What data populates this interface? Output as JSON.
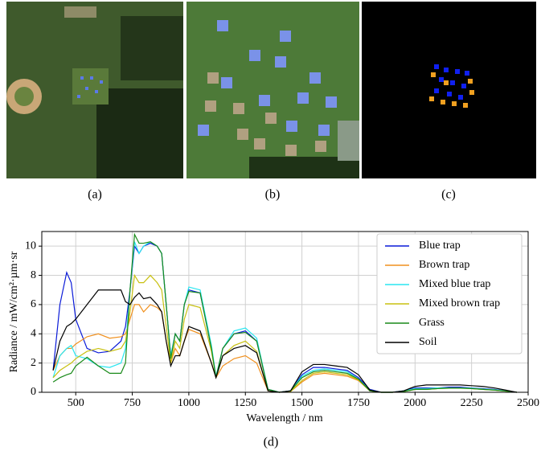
{
  "captions": [
    "(a)",
    "(b)",
    "(c)",
    "(d)"
  ],
  "chart_data": {
    "type": "line",
    "x_label": "Wavelength / nm",
    "y_label": "Radiance / mW/cm²·µm·sr",
    "x": [
      400,
      430,
      460,
      480,
      500,
      550,
      600,
      650,
      700,
      720,
      740,
      760,
      780,
      800,
      830,
      860,
      880,
      900,
      920,
      940,
      960,
      980,
      1000,
      1050,
      1100,
      1120,
      1150,
      1200,
      1250,
      1300,
      1350,
      1400,
      1450,
      1500,
      1550,
      1600,
      1650,
      1700,
      1750,
      1800,
      1850,
      1900,
      1950,
      2000,
      2050,
      2100,
      2150,
      2200,
      2250,
      2300,
      2350,
      2400,
      2450
    ],
    "series": [
      {
        "name": "Blue trap",
        "color": "#0a1ad8",
        "values": [
          1.5,
          6,
          8.2,
          7.5,
          5,
          3,
          2.7,
          2.8,
          3.5,
          4.5,
          7,
          10,
          9.5,
          10,
          10.2,
          10,
          9.5,
          6,
          2.5,
          4,
          3.5,
          6,
          7,
          6.8,
          3,
          1,
          3,
          4,
          4.2,
          3.5,
          0.2,
          0,
          0.1,
          1.2,
          1.7,
          1.7,
          1.6,
          1.5,
          1,
          0.2,
          0,
          0,
          0.1,
          0.3,
          0.3,
          0.3,
          0.35,
          0.35,
          0.3,
          0.25,
          0.2,
          0.1,
          0
        ]
      },
      {
        "name": "Brown trap",
        "color": "#f0901e",
        "values": [
          1.5,
          2.5,
          3,
          3,
          3.3,
          3.8,
          4,
          3.7,
          3.8,
          4,
          5,
          6,
          6,
          5.5,
          6,
          5.8,
          5.5,
          3.5,
          2,
          3,
          2.5,
          3.5,
          4.3,
          4,
          2,
          1,
          1.8,
          2.3,
          2.5,
          2,
          0.1,
          0,
          0.05,
          0.7,
          1.2,
          1.3,
          1.2,
          1.1,
          0.8,
          0.1,
          0,
          0,
          0.05,
          0.2,
          0.2,
          0.25,
          0.3,
          0.3,
          0.25,
          0.2,
          0.15,
          0.08,
          0
        ]
      },
      {
        "name": "Mixed blue trap",
        "color": "#28e6f0",
        "values": [
          1,
          2.5,
          3,
          3.2,
          2.5,
          2.3,
          1.8,
          1.7,
          2,
          3,
          7,
          10.3,
          9.5,
          10,
          10.3,
          10,
          9.5,
          6,
          2.5,
          4,
          3.5,
          6,
          7.2,
          7,
          3.2,
          1.1,
          3,
          4.2,
          4.4,
          3.7,
          0.2,
          0,
          0.1,
          1.1,
          1.5,
          1.6,
          1.5,
          1.4,
          0.9,
          0.15,
          0,
          0,
          0.1,
          0.25,
          0.25,
          0.3,
          0.3,
          0.3,
          0.28,
          0.22,
          0.18,
          0.1,
          0
        ]
      },
      {
        "name": "Mixed brown trap",
        "color": "#c8c010",
        "values": [
          1,
          1.5,
          1.8,
          2,
          2.3,
          2.8,
          3,
          2.8,
          3,
          3.5,
          5.5,
          8,
          7.5,
          7.5,
          8,
          7.5,
          7,
          4.5,
          2,
          3.5,
          3,
          5,
          6,
          5.8,
          2.8,
          1,
          2.5,
          3.2,
          3.5,
          2.8,
          0.1,
          0,
          0.05,
          0.8,
          1.3,
          1.4,
          1.3,
          1.2,
          0.85,
          0.1,
          0,
          0,
          0.05,
          0.2,
          0.2,
          0.25,
          0.28,
          0.28,
          0.25,
          0.2,
          0.15,
          0.08,
          0
        ]
      },
      {
        "name": "Grass",
        "color": "#1a8a1a",
        "values": [
          0.7,
          1,
          1.2,
          1.3,
          1.8,
          2.4,
          1.8,
          1.3,
          1.3,
          2,
          7,
          10.8,
          10.2,
          10.2,
          10.3,
          10,
          9.5,
          6,
          2.3,
          4,
          3.5,
          6,
          6.9,
          6.8,
          3,
          1,
          3,
          4,
          4.1,
          3.5,
          0.2,
          0,
          0.1,
          1,
          1.4,
          1.5,
          1.4,
          1.3,
          0.9,
          0.1,
          0,
          0,
          0.05,
          0.2,
          0.2,
          0.25,
          0.28,
          0.28,
          0.25,
          0.2,
          0.15,
          0.08,
          0
        ]
      },
      {
        "name": "Soil",
        "color": "#000000",
        "values": [
          1.5,
          3.5,
          4.5,
          4.7,
          5,
          6,
          7,
          7,
          7,
          6.2,
          6,
          6.5,
          6.8,
          6.4,
          6.5,
          6,
          5.5,
          3.5,
          1.8,
          2.5,
          2.5,
          3.5,
          4.5,
          4.2,
          2,
          1,
          2.5,
          3,
          3.2,
          2.7,
          0.1,
          0,
          0.1,
          1.4,
          1.9,
          1.9,
          1.8,
          1.7,
          1.2,
          0.15,
          0,
          0,
          0.1,
          0.4,
          0.5,
          0.5,
          0.5,
          0.5,
          0.45,
          0.4,
          0.3,
          0.15,
          0
        ]
      }
    ],
    "xlim": [
      350,
      2500
    ],
    "xticks": [
      500,
      750,
      1000,
      1250,
      1500,
      1750,
      2000,
      2250,
      2500
    ],
    "ylim": [
      0,
      11
    ],
    "yticks": [
      0,
      2,
      4,
      6,
      8,
      10
    ],
    "grid": true,
    "legend": "upper-right"
  }
}
